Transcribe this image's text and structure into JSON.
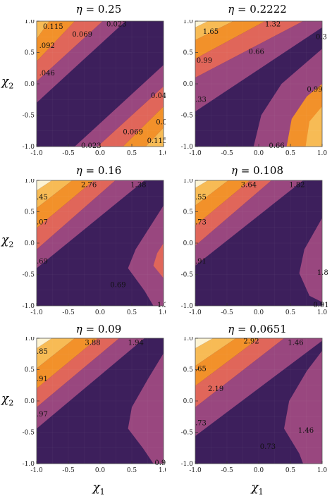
{
  "chart_data": [
    {
      "type": "contour",
      "title_prefix": "η = ",
      "title_value": "0.25",
      "xlim": [
        -1,
        1
      ],
      "ylim": [
        -1,
        1
      ],
      "x_ticks": [
        "-1.0",
        "-0.5",
        "0.0",
        "0.5",
        "1.0"
      ],
      "y_ticks": [
        "1.0",
        "0.5",
        "0.0",
        "-0.5",
        "-1.0"
      ],
      "contour_levels": [
        "0.023",
        "0.046",
        "0.069",
        "0.092",
        "0.115"
      ],
      "labels": [
        "0.115",
        "0.069",
        "0.023",
        ".092",
        ".046",
        "0.046",
        "0.09",
        "0.069",
        "0.115",
        "0.023"
      ]
    },
    {
      "type": "contour",
      "title_prefix": "η = ",
      "title_value": "0.2222",
      "xlim": [
        -1,
        1
      ],
      "ylim": [
        -1,
        1
      ],
      "x_ticks": [
        "-1.0",
        "-0.5",
        "0.0",
        "0.5",
        "1.0"
      ],
      "y_ticks": [
        "1.0",
        "0.5",
        "0.0",
        "-0.5",
        "-1.0"
      ],
      "contour_levels": [
        "0.33",
        "0.66",
        "0.99",
        "1.32",
        "1.65"
      ],
      "labels": [
        "1.65",
        "1.32",
        "0.3",
        "0.66",
        "0.99",
        ".33",
        "0.99",
        "0.66"
      ]
    },
    {
      "type": "contour",
      "title_prefix": "η = ",
      "title_value": "0.16",
      "xlim": [
        -1,
        1
      ],
      "ylim": [
        -1,
        1
      ],
      "x_ticks": [
        "-1.0",
        "-0.5",
        "0.0",
        "0.5",
        "1.0"
      ],
      "y_ticks": [
        "1.0",
        "0.5",
        "0.0",
        "-0.5",
        "-1.0"
      ],
      "contour_levels": [
        "0.69",
        "1.38",
        "2.07",
        "2.76",
        "3.45"
      ],
      "labels": [
        ".45",
        "2.76",
        "1.38",
        ".07",
        ".69",
        "0.69",
        "1.3"
      ]
    },
    {
      "type": "contour",
      "title_prefix": "η = ",
      "title_value": "0.108",
      "xlim": [
        -1,
        1
      ],
      "ylim": [
        -1,
        1
      ],
      "x_ticks": [
        "-1.0",
        "-0.5",
        "0.0",
        "0.5",
        "1.0"
      ],
      "y_ticks": [
        "1.0",
        "0.5",
        "0.0",
        "-0.5",
        "-1.0"
      ],
      "contour_levels": [
        "0.91",
        "1.82",
        "2.73",
        "3.64",
        "4.55"
      ],
      "labels": [
        ".55",
        "3.64",
        "1.82",
        ".73",
        ".91",
        "1.8",
        "0.91"
      ]
    },
    {
      "type": "contour",
      "title_prefix": "η = ",
      "title_value": "0.09",
      "xlim": [
        -1,
        1
      ],
      "ylim": [
        -1,
        1
      ],
      "x_ticks": [
        "-1.0",
        "-0.5",
        "0.0",
        "0.5",
        "1.0"
      ],
      "y_ticks": [
        "1.0",
        "0.5",
        "0.0",
        "-0.5",
        "-1.0"
      ],
      "contour_levels": [
        "0.97",
        "1.94",
        "2.91",
        "3.88",
        "4.85"
      ],
      "labels": [
        ".85",
        "3.88",
        "1.94",
        ".91",
        ".97",
        "0.9"
      ]
    },
    {
      "type": "contour",
      "title_prefix": "η = ",
      "title_value": "0.0651",
      "xlim": [
        -1,
        1
      ],
      "ylim": [
        -1,
        1
      ],
      "x_ticks": [
        "-1.0",
        "-0.5",
        "0.0",
        "0.5",
        "1.0"
      ],
      "y_ticks": [
        "1.0",
        "0.5",
        "0.0",
        "-0.5",
        "-1.0"
      ],
      "contour_levels": [
        "0.73",
        "1.46",
        "2.19",
        "2.92",
        "3.65"
      ],
      "labels": [
        "2.92",
        "1.46",
        ".65",
        "2.19",
        ".73",
        "1.46",
        "0.73"
      ]
    }
  ],
  "axis_labels": {
    "y_symbol": "χ",
    "y_sub": "2",
    "x_symbol": "χ",
    "x_sub": "1"
  },
  "colors": {
    "level0": "#3d1f5c",
    "level1": "#99477f",
    "level2": "#e0665a",
    "level3": "#f2912a",
    "level4": "#f7bb55",
    "level5": "#fdf3d2"
  }
}
